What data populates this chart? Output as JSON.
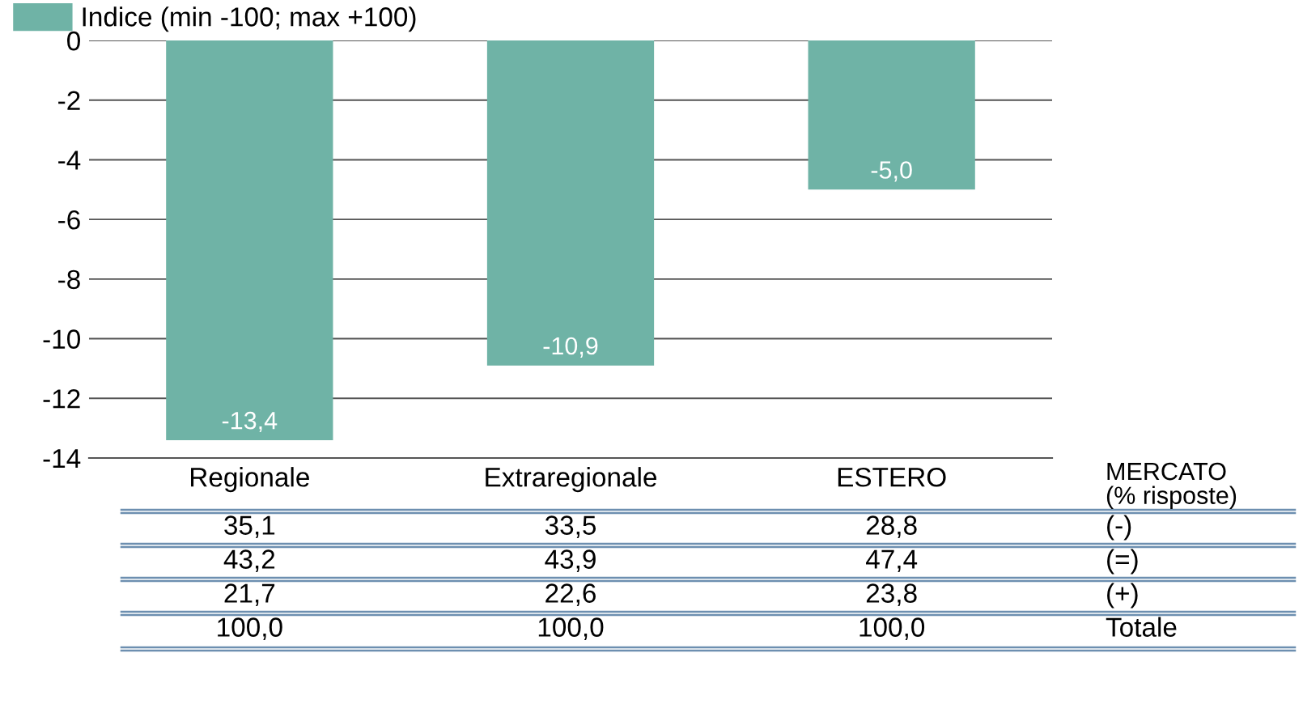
{
  "chart_data": {
    "type": "bar",
    "categories": [
      "Regionale",
      "Extraregionale",
      "ESTERO"
    ],
    "series": [
      {
        "name": "Indice (min -100; max +100)",
        "color": "#6fb3a6",
        "values": [
          -13.4,
          -10.9,
          -5.0
        ],
        "value_labels": [
          "-13,4",
          "-10,9",
          "-5,0"
        ]
      }
    ],
    "ylim": [
      -14,
      0
    ],
    "yticks": [
      0,
      -2,
      -4,
      -6,
      -8,
      -10,
      -12,
      -14
    ],
    "grid": "y",
    "legend": "top left",
    "annotations": [
      "MERCATO\n(% risposte)",
      "35,1",
      "33,5",
      "28,8",
      "(-)",
      "43,2",
      "43,9",
      "47,4",
      "(=)",
      "21,7",
      "22,6",
      "23,8",
      "(+)",
      "100,0",
      "100,0",
      "100,0",
      "Totale"
    ]
  }
}
